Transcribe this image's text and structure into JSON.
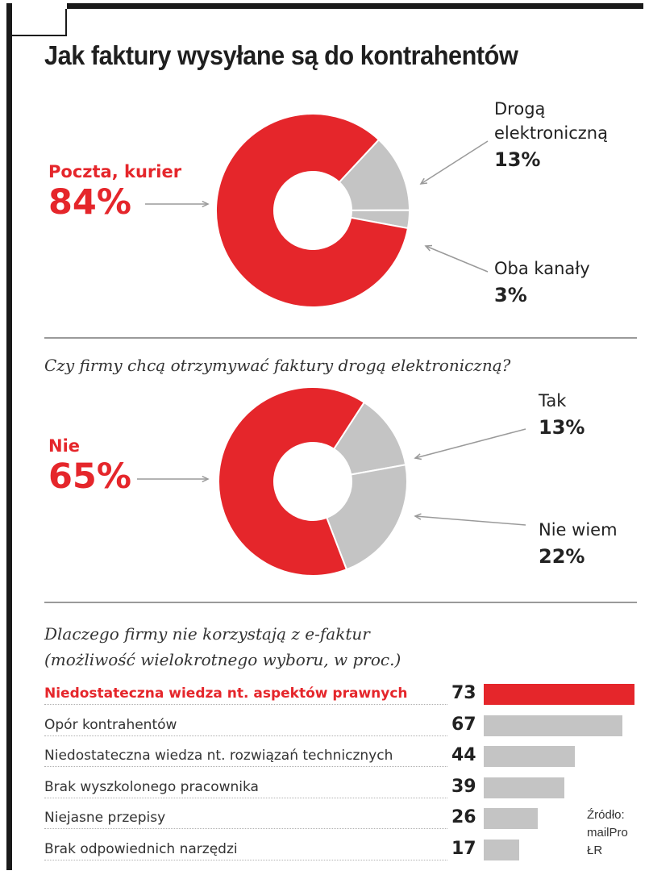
{
  "title": "Jak faktury wysyłane są do kontrahentów",
  "colors": {
    "accent": "#e5262b",
    "grey": "#c4c4c4",
    "text": "#222222"
  },
  "chart_data": [
    {
      "type": "pie",
      "title": "Jak faktury wysyłane są do kontrahentów",
      "labels": [
        "Poczta, kurier",
        "Drogą elektroniczną",
        "Oba kanały"
      ],
      "label_lines": [
        [
          "Poczta, kurier"
        ],
        [
          "Drogą",
          "elektroniczną"
        ],
        [
          "Oba kanały"
        ]
      ],
      "values": [
        84,
        13,
        3
      ],
      "value_labels": [
        "84%",
        "13%",
        "3%"
      ],
      "colors": [
        "#e5262b",
        "#c4c4c4",
        "#c4c4c4"
      ]
    },
    {
      "type": "pie",
      "title": "Czy firmy chcą otrzymywać faktury drogą elektroniczną?",
      "labels": [
        "Nie",
        "Tak",
        "Nie wiem"
      ],
      "values": [
        65,
        13,
        22
      ],
      "value_labels": [
        "65%",
        "13%",
        "22%"
      ],
      "colors": [
        "#e5262b",
        "#c4c4c4",
        "#c4c4c4"
      ]
    },
    {
      "type": "bar",
      "title_lines": [
        "Dlaczego firmy nie korzystają z e-faktur",
        "(możliwość wielokrotnego wyboru, w proc.)"
      ],
      "categories": [
        "Niedostateczna wiedza nt. aspektów prawnych",
        "Opór kontrahentów",
        "Niedostateczna wiedza nt. rozwiązań technicznych",
        "Brak wyszkolonego pracownika",
        "Niejasne przepisy",
        "Brak odpowiednich narzędzi"
      ],
      "values": [
        73,
        67,
        44,
        39,
        26,
        17
      ],
      "highlight": [
        true,
        false,
        false,
        false,
        false,
        false
      ],
      "orientation": "horizontal"
    }
  ],
  "source_lines": [
    "Źródło:",
    "mailPro",
    "ŁR"
  ]
}
